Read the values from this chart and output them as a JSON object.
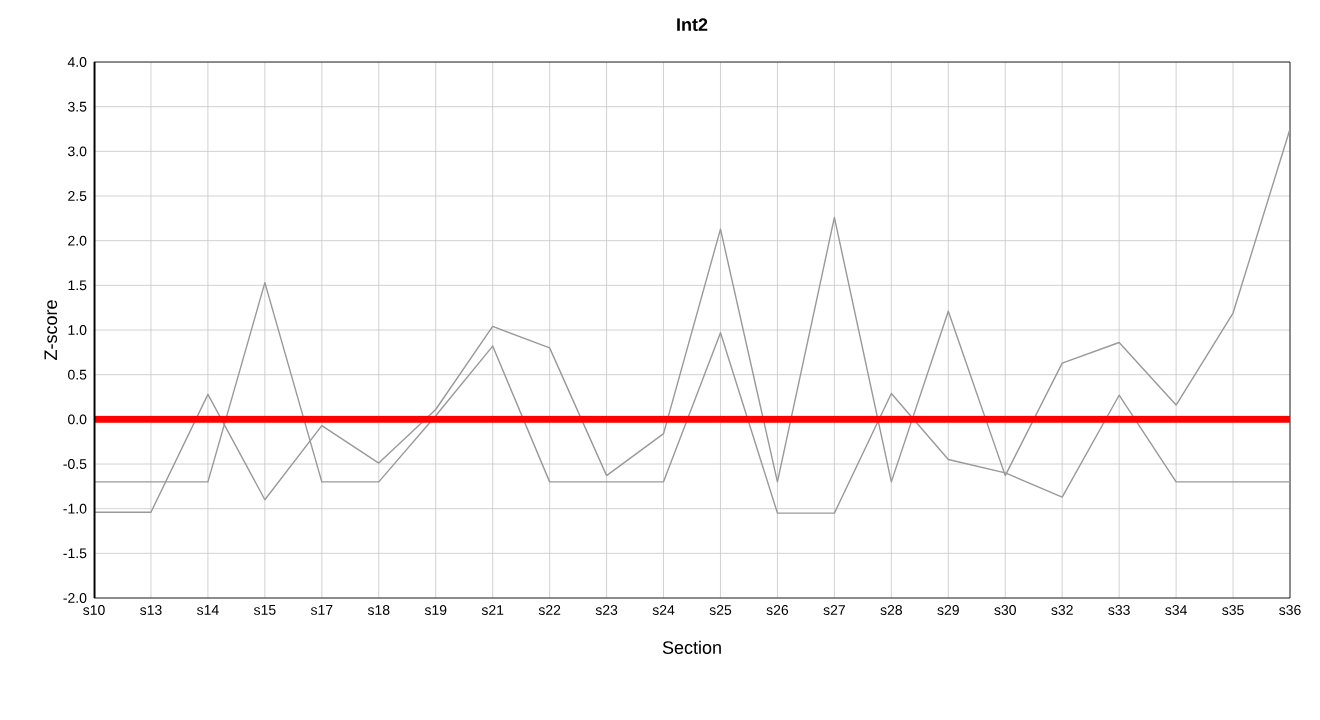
{
  "chart_data": {
    "type": "line",
    "title": "Int2",
    "xlabel": "Section",
    "ylabel": "Z-score",
    "categories": [
      "s10",
      "s13",
      "s14",
      "s15",
      "s17",
      "s18",
      "s19",
      "s21",
      "s22",
      "s23",
      "s24",
      "s25",
      "s26",
      "s27",
      "s28",
      "s29",
      "s30",
      "s32",
      "s33",
      "s34",
      "s35",
      "s36"
    ],
    "series": [
      {
        "color": "#999999",
        "values": [
          -1.04,
          -1.04,
          0.28,
          -0.9,
          -0.07,
          -0.49,
          0.11,
          1.04,
          0.8,
          -0.63,
          -0.16,
          2.13,
          -0.7,
          2.26,
          -0.7,
          1.21,
          -0.63,
          0.63,
          0.86,
          0.16,
          1.19,
          3.25
        ]
      },
      {
        "color": "#999999",
        "values": [
          -0.7,
          -0.7,
          -0.7,
          1.53,
          -0.7,
          -0.7,
          0.04,
          0.82,
          -0.7,
          -0.7,
          -0.7,
          0.97,
          -1.05,
          -1.05,
          0.29,
          -0.45,
          -0.6,
          -0.87,
          0.27,
          -0.7,
          -0.7,
          -0.7
        ]
      }
    ],
    "ylim": [
      -2.0,
      4.0
    ],
    "yticks": [
      {
        "value": -2.0,
        "label": "-2.0"
      },
      {
        "value": -1.5,
        "label": "-1.5"
      },
      {
        "value": -1.0,
        "label": "-1.0"
      },
      {
        "value": -0.5,
        "label": "-0.5"
      },
      {
        "value": 0.0,
        "label": "0.0"
      },
      {
        "value": 0.5,
        "label": "0.5"
      },
      {
        "value": 1.0,
        "label": "1.0"
      },
      {
        "value": 1.5,
        "label": "1.5"
      },
      {
        "value": 2.0,
        "label": "2.0"
      },
      {
        "value": 2.5,
        "label": "2.5"
      },
      {
        "value": 3.0,
        "label": "3.0"
      },
      {
        "value": 3.5,
        "label": "3.5"
      },
      {
        "value": 4.0,
        "label": "4.0"
      }
    ],
    "ref_lines": [
      {
        "axis": "y",
        "value": 0.0,
        "color": "#ff0000"
      }
    ],
    "grid": true,
    "marker": "none",
    "line_style": "solid"
  }
}
